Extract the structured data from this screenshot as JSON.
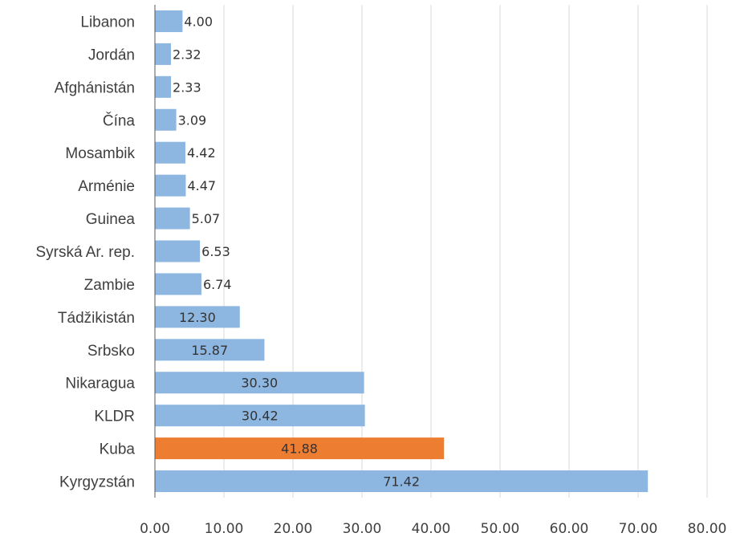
{
  "chart_data": {
    "type": "bar",
    "orientation": "horizontal",
    "title": "",
    "xlabel": "",
    "ylabel": "",
    "categories": [
      "Libanon",
      "Jordán",
      "Afghánistán",
      "Čína",
      "Mosambik",
      "Arménie",
      "Guinea",
      "Syrská Ar. rep.",
      "Zambie",
      "Tádžikistán",
      "Srbsko",
      "Nikaragua",
      "KLDR",
      "Kuba",
      "Kyrgyzstán"
    ],
    "values": [
      4.0,
      2.32,
      2.33,
      3.09,
      4.42,
      4.47,
      5.07,
      6.53,
      6.74,
      12.3,
      15.87,
      30.3,
      30.42,
      41.88,
      71.42
    ],
    "value_labels": [
      "4.00",
      "2.32",
      "2.33",
      "3.09",
      "4.42",
      "4.47",
      "5.07",
      "6.53",
      "6.74",
      "12.30",
      "15.87",
      "30.30",
      "30.42",
      "41.88",
      "71.42"
    ],
    "highlight_category": "Kuba",
    "xlim": [
      0,
      80
    ],
    "x_ticks": [
      "0.00",
      "10.00",
      "20.00",
      "30.00",
      "40.00",
      "50.00",
      "60.00",
      "70.00",
      "80.00"
    ],
    "grid": "vertical",
    "legend": "none",
    "colors": {
      "bar": "#8db6e1",
      "highlight": "#ed7d31",
      "grid": "#d9d9d9",
      "axis": "#595959"
    }
  }
}
